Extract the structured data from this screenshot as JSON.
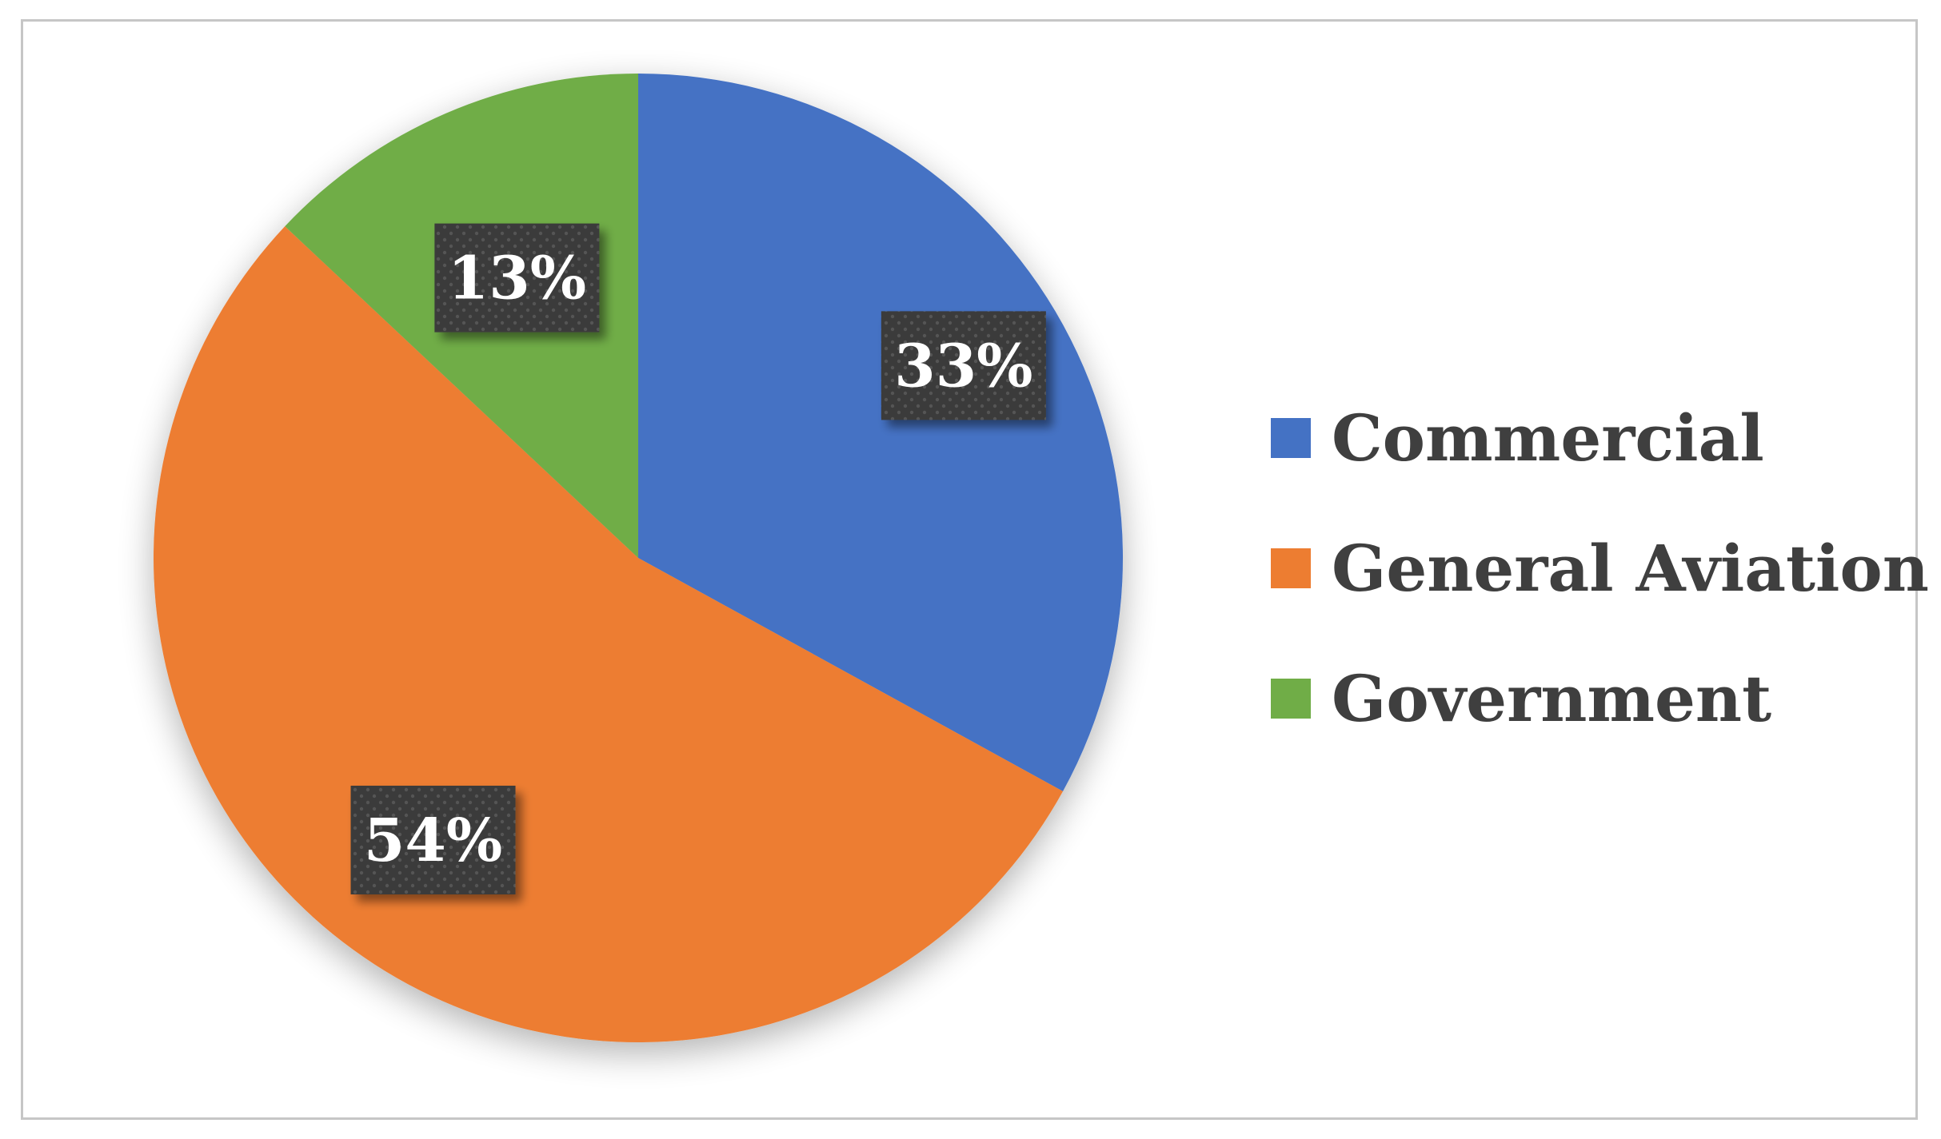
{
  "chart_data": {
    "type": "pie",
    "categories": [
      "Commercial",
      "General Aviation",
      "Government"
    ],
    "values": [
      33,
      54,
      13
    ],
    "data_labels": [
      "33%",
      "54%",
      "13%"
    ],
    "colors": [
      "#4472C4",
      "#ED7D31",
      "#70AD47"
    ],
    "start_angle_deg": 0,
    "direction": "clockwise",
    "legend_position": "right",
    "data_label_style": "dark patterned box with white text"
  }
}
